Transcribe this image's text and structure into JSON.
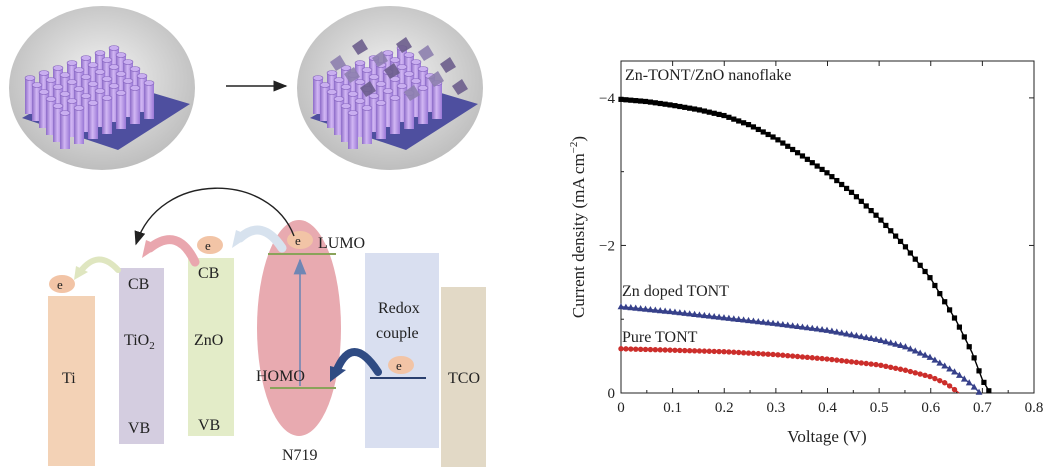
{
  "diagram": {
    "band_labels": {
      "ti": "Ti",
      "tio2_cb": "CB",
      "tio2_name": "TiO",
      "tio2_sub": "2",
      "tio2_vb": "VB",
      "zno_cb": "CB",
      "zno_name": "ZnO",
      "zno_vb": "VB",
      "lumo": "LUMO",
      "homo": "HOMO",
      "dye": "N719",
      "redox_line1": "Redox",
      "redox_line2": "couple",
      "tco": "TCO",
      "electron": "e"
    },
    "colors": {
      "ti": "#f3d2b6",
      "tio2": "#d4cde0",
      "zno": "#e3ecc8",
      "n719": "#e8aab0",
      "redox": "#d9dff0",
      "tco": "#e2d9c6",
      "electron": "#f2c4a6",
      "nanotube": "#b58ee0",
      "substrate": "#4e4f9f"
    }
  },
  "chart_data": {
    "type": "line",
    "xlabel": "Voltage (V)",
    "ylabel_main": "Current density (mA cm",
    "ylabel_sup": "−2",
    "ylabel_close": ")",
    "xlim": [
      0,
      0.8
    ],
    "ylim": [
      0,
      -4.5
    ],
    "x_ticks": [
      "0",
      "0.1",
      "0.2",
      "0.3",
      "0.4",
      "0.5",
      "0.6",
      "0.7",
      "0.8"
    ],
    "y_ticks": [
      "0",
      "−2",
      "−4"
    ],
    "series": [
      {
        "name": "Zn-TONT/ZnO nanoflake",
        "color": "#000000",
        "marker": "square",
        "points": [
          [
            0,
            -3.98
          ],
          [
            0.05,
            -3.95
          ],
          [
            0.1,
            -3.9
          ],
          [
            0.15,
            -3.84
          ],
          [
            0.2,
            -3.76
          ],
          [
            0.25,
            -3.63
          ],
          [
            0.3,
            -3.45
          ],
          [
            0.35,
            -3.22
          ],
          [
            0.4,
            -2.98
          ],
          [
            0.45,
            -2.7
          ],
          [
            0.5,
            -2.37
          ],
          [
            0.55,
            -1.99
          ],
          [
            0.6,
            -1.55
          ],
          [
            0.65,
            -0.97
          ],
          [
            0.68,
            -0.55
          ],
          [
            0.7,
            -0.18
          ],
          [
            0.715,
            0
          ]
        ]
      },
      {
        "name": "Zn doped TONT",
        "color": "#36408a",
        "marker": "triangle",
        "points": [
          [
            0,
            -1.17
          ],
          [
            0.1,
            -1.1
          ],
          [
            0.2,
            -1.02
          ],
          [
            0.3,
            -0.94
          ],
          [
            0.4,
            -0.85
          ],
          [
            0.5,
            -0.72
          ],
          [
            0.55,
            -0.63
          ],
          [
            0.6,
            -0.48
          ],
          [
            0.65,
            -0.27
          ],
          [
            0.68,
            -0.11
          ],
          [
            0.695,
            0
          ]
        ]
      },
      {
        "name": "Pure TONT",
        "color": "#cc2e2b",
        "marker": "circle",
        "points": [
          [
            0,
            -0.6
          ],
          [
            0.1,
            -0.58
          ],
          [
            0.2,
            -0.56
          ],
          [
            0.3,
            -0.52
          ],
          [
            0.4,
            -0.46
          ],
          [
            0.5,
            -0.38
          ],
          [
            0.55,
            -0.31
          ],
          [
            0.6,
            -0.22
          ],
          [
            0.63,
            -0.13
          ],
          [
            0.655,
            0
          ]
        ]
      }
    ]
  }
}
